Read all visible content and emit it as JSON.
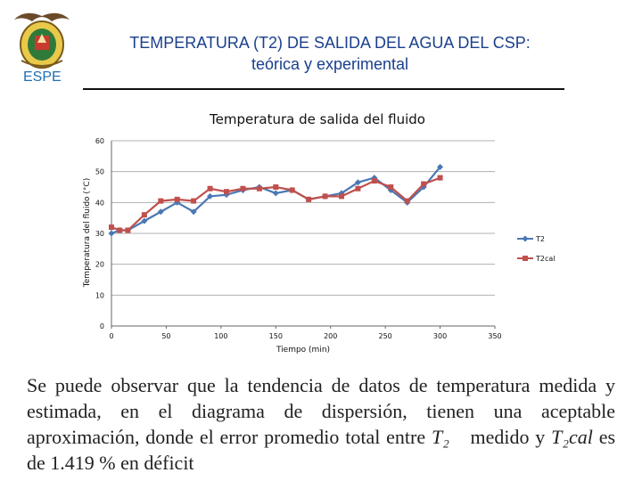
{
  "header": {
    "title_line1": "TEMPERATURA (T2) DE SALIDA DEL AGUA DEL CSP:",
    "title_line2": "teórica y experimental",
    "logo_text": "ESPE",
    "accent": "#1f6fb2"
  },
  "chart_data": {
    "type": "line",
    "title": "Temperatura de salida del fluido",
    "xlabel": "Tiempo (min)",
    "ylabel": "Temperatura del fluido (°C)",
    "xlim": [
      0,
      350
    ],
    "ylim": [
      0,
      60
    ],
    "xticks": [
      0,
      50,
      100,
      150,
      200,
      250,
      300,
      350
    ],
    "yticks": [
      0,
      10,
      20,
      30,
      40,
      50,
      60
    ],
    "legend": "right",
    "series": [
      {
        "name": "T2",
        "color": "#4a78b5",
        "marker": "diamond",
        "x": [
          0,
          7.5,
          15,
          30,
          45,
          60,
          75,
          90,
          105,
          120,
          135,
          150,
          165,
          180,
          195,
          210,
          225,
          240,
          255,
          270,
          285,
          300
        ],
        "y": [
          30,
          31,
          31,
          34,
          37,
          40,
          37,
          42,
          42.5,
          44,
          45,
          43,
          44,
          41,
          42,
          43,
          46.5,
          48,
          44,
          40,
          45,
          51.5
        ]
      },
      {
        "name": "T2cal",
        "color": "#c0504d",
        "marker": "square",
        "x": [
          0,
          7.5,
          15,
          30,
          45,
          60,
          75,
          90,
          105,
          120,
          135,
          150,
          165,
          180,
          195,
          210,
          225,
          240,
          255,
          270,
          285,
          300
        ],
        "y": [
          32,
          31,
          31,
          36,
          40.5,
          41,
          40.5,
          44.5,
          43.5,
          44.5,
          44.5,
          45,
          44,
          41,
          42,
          42,
          44.5,
          47,
          45,
          40.5,
          46,
          48
        ]
      }
    ]
  },
  "caption": {
    "text1": "Se puede observar que la tendencia de datos de temperatura medida y estimada, en el diagrama de dispersión, tienen una aceptable aproximación, donde el error promedio total entre",
    "t2": "T₂",
    "text2": "medido y",
    "t2cal": "T₂cal",
    "text3": "es de 1.419 % en déficit"
  }
}
